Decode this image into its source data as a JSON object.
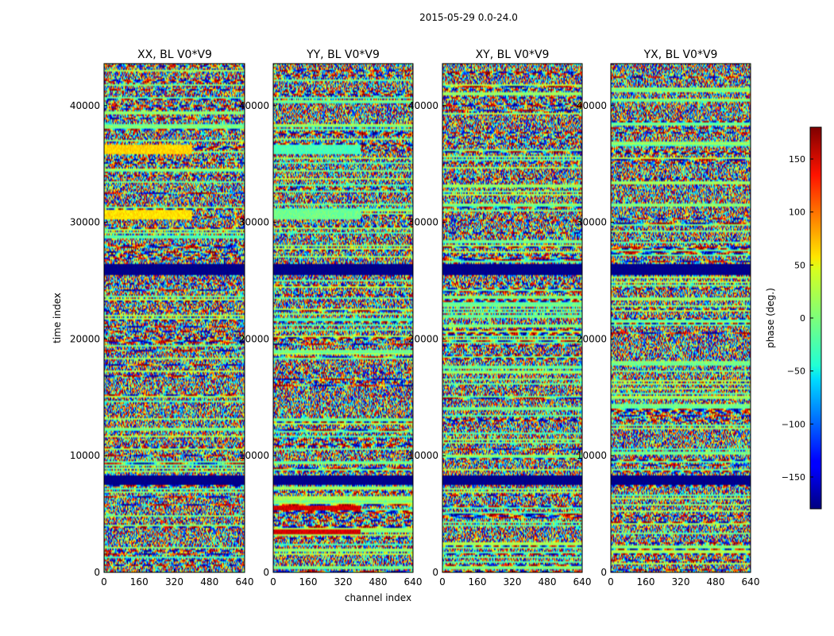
{
  "chart_data": {
    "type": "heatmap",
    "suptitle": "2015-05-29 0.0-24.0",
    "xlabel": "channel index",
    "ylabel": "time index",
    "xlim": [
      0,
      640
    ],
    "ylim": [
      0,
      43600
    ],
    "xticks": [
      "0",
      "160",
      "320",
      "480",
      "640"
    ],
    "yticks": [
      "0",
      "10000",
      "20000",
      "30000",
      "40000"
    ],
    "colorbar": {
      "label": "phase (deg.)",
      "range": [
        -180,
        180
      ],
      "ticks": [
        "−150",
        "−100",
        "−50",
        "0",
        "50",
        "100",
        "150"
      ],
      "colormap": "jet"
    },
    "panels": [
      {
        "title": "XX, BL V0*V9"
      },
      {
        "title": "YY, BL V0*V9"
      },
      {
        "title": "XY, BL V0*V9"
      },
      {
        "title": "YX, BL V0*V9"
      }
    ],
    "flagged_bands_time_index": [
      [
        7500,
        8300
      ],
      [
        25500,
        26500
      ]
    ],
    "coherent_bands": [
      {
        "panel": 0,
        "t": [
          35800,
          36600
        ],
        "ch": [
          0,
          400
        ],
        "phase": 60
      },
      {
        "panel": 0,
        "t": [
          30200,
          31000
        ],
        "ch": [
          0,
          400
        ],
        "phase": 55
      },
      {
        "panel": 1,
        "t": [
          35800,
          36600
        ],
        "ch": [
          0,
          400
        ],
        "phase": -20
      },
      {
        "panel": 1,
        "t": [
          30200,
          31000
        ],
        "ch": [
          0,
          400
        ],
        "phase": -5
      },
      {
        "panel": 1,
        "t": [
          5300,
          5700
        ],
        "ch": [
          0,
          400
        ],
        "phase": 150
      },
      {
        "panel": 1,
        "t": [
          3300,
          3700
        ],
        "ch": [
          0,
          400
        ],
        "phase": 150
      }
    ]
  }
}
